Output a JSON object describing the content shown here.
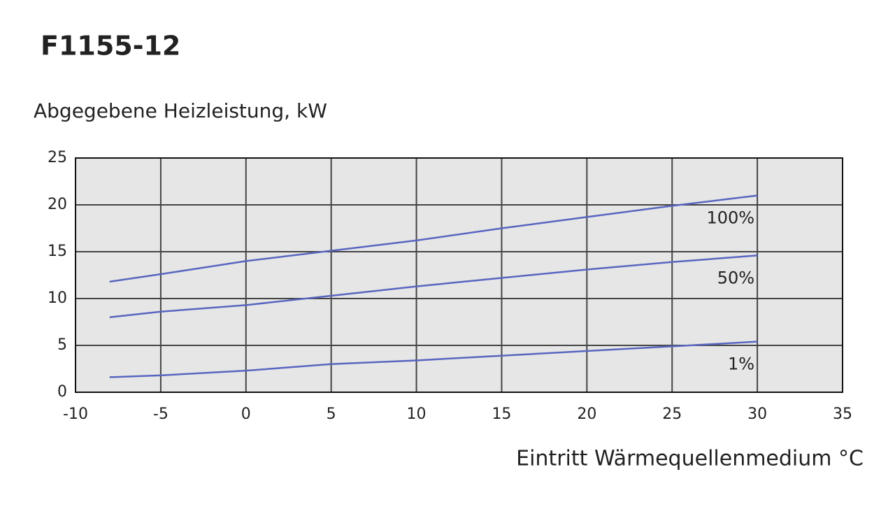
{
  "chart_data": {
    "type": "line",
    "title": "F1155-12",
    "y_label": "Abgegebene Heizleistung, kW",
    "x_label": "Eintritt Wärmequellenmedium °C",
    "x": [
      -8,
      -5,
      0,
      5,
      10,
      15,
      20,
      25,
      30
    ],
    "series": [
      {
        "name": "100%",
        "color": "#5866c0",
        "values": [
          11.8,
          12.6,
          14.0,
          15.1,
          16.2,
          17.5,
          18.7,
          19.9,
          21.0
        ]
      },
      {
        "name": "50%",
        "color": "#5866c0",
        "values": [
          8.0,
          8.6,
          9.3,
          10.3,
          11.3,
          12.2,
          13.1,
          13.9,
          14.6
        ]
      },
      {
        "name": "1%",
        "color": "#5866c0",
        "values": [
          1.6,
          1.8,
          2.3,
          3.0,
          3.4,
          3.9,
          4.4,
          4.9,
          5.4
        ]
      }
    ],
    "xlim": [
      -10,
      35
    ],
    "xticks": [
      -10,
      -5,
      0,
      5,
      10,
      15,
      20,
      25,
      30,
      35
    ],
    "ylim": [
      0,
      25
    ],
    "yticks": [
      0,
      5,
      10,
      15,
      20,
      25
    ],
    "grid": true
  }
}
